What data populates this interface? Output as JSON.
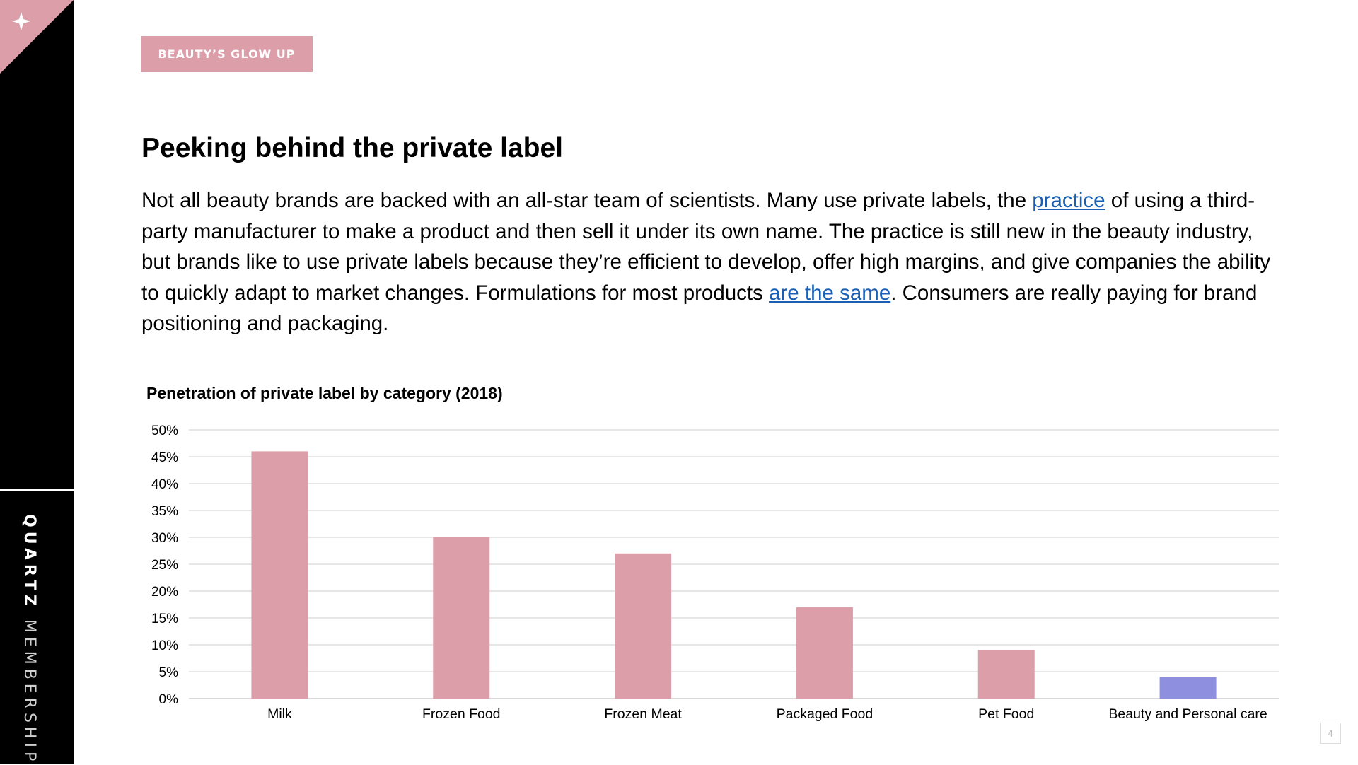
{
  "sidebar": {
    "brand_strong": "QUARTZ",
    "brand_light": "MEMBERSHIP",
    "corner_icon": "sparkle-icon",
    "corner_color": "#dc9fa9"
  },
  "header": {
    "tag": "BEAUTY’S GLOW UP",
    "tag_color": "#dc9fa9"
  },
  "article": {
    "title": "Peeking behind the private label",
    "p1": "Not all beauty brands are backed with an all-star team of scientists. Many use private labels, the ",
    "link1": "practice",
    "p2": " of using a third-party manufacturer to make a product and then sell it under its own name. The practice is still new in the beauty industry, but brands like to use private labels because they’re efficient to develop, offer high margins, and give companies the ability to quickly adapt to market changes. Formulations for most products ",
    "link2": "are the same",
    "p3": ". Consumers are really paying for brand positioning and packaging."
  },
  "chart_data": {
    "type": "bar",
    "title": "Penetration of private label by category (2018)",
    "xlabel": "",
    "ylabel": "",
    "categories": [
      "Milk",
      "Frozen Food",
      "Frozen Meat",
      "Packaged Food",
      "Pet Food",
      "Beauty and Personal care"
    ],
    "values": [
      46,
      30,
      27,
      17,
      9,
      4
    ],
    "ylim": [
      0,
      50
    ],
    "yticks": [
      0,
      5,
      10,
      15,
      20,
      25,
      30,
      35,
      40,
      45,
      50
    ],
    "ytick_suffix": "%",
    "grid": true,
    "bar_color": "#dc9fa9",
    "highlight_color": "#8f8fe0",
    "highlight_index": 5
  },
  "footer": {
    "page_number": "4"
  }
}
